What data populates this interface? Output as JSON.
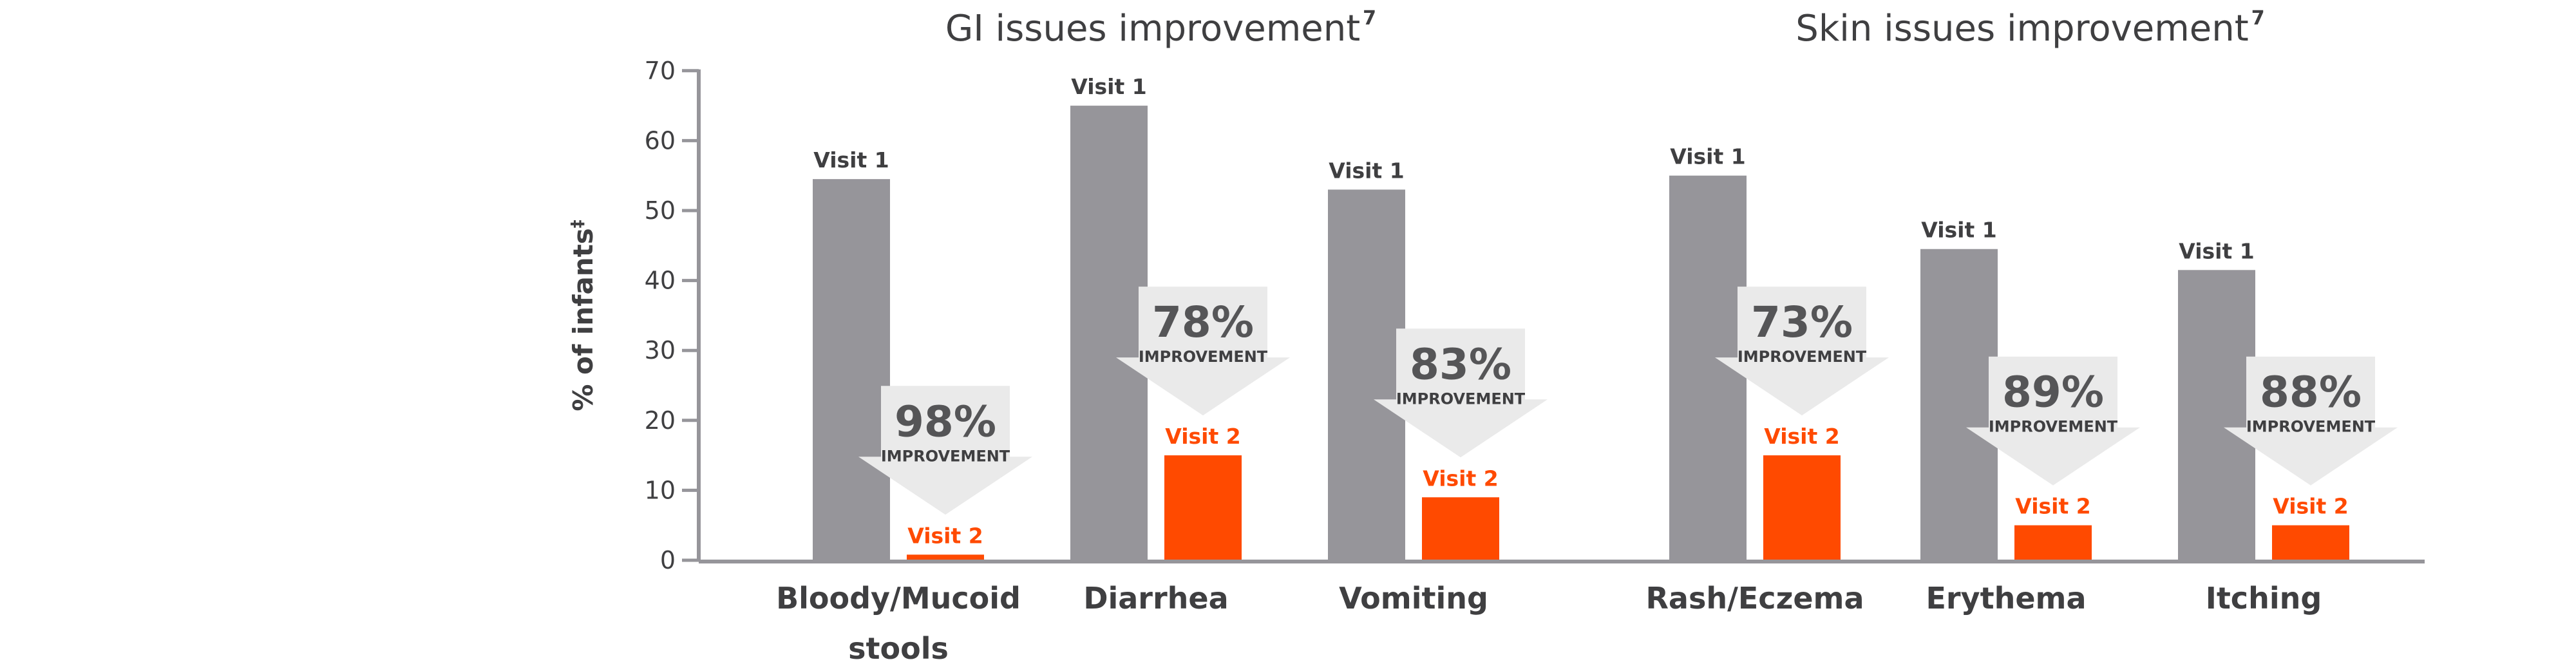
{
  "chart_data": {
    "type": "bar",
    "ylabel": "% of infants",
    "ylabel_superscript": "‡",
    "ylim": [
      0,
      70
    ],
    "yticks": [
      0,
      10,
      20,
      30,
      40,
      50,
      60,
      70
    ],
    "series_labels": {
      "visit1": "Visit 1",
      "visit2": "Visit 2"
    },
    "improvement_word": "IMPROVEMENT",
    "colors": {
      "visit1": "#96959a",
      "visit2": "#ff4a00",
      "arrow": "#eaeaea"
    },
    "groups": [
      {
        "title": "GI issues improvement",
        "superscript": "7",
        "categories": [
          {
            "label": [
              "Bloody/Mucoid",
              "stools"
            ],
            "visit1": 54.5,
            "visit2": 0.8,
            "improvement": "98%"
          },
          {
            "label": [
              "Diarrhea"
            ],
            "visit1": 65,
            "visit2": 15,
            "improvement": "78%"
          },
          {
            "label": [
              "Vomiting"
            ],
            "visit1": 53,
            "visit2": 9,
            "improvement": "83%"
          }
        ]
      },
      {
        "title": "Skin issues improvement",
        "superscript": "7",
        "categories": [
          {
            "label": [
              "Rash/Eczema"
            ],
            "visit1": 55,
            "visit2": 15,
            "improvement": "73%"
          },
          {
            "label": [
              "Erythema"
            ],
            "visit1": 44.5,
            "visit2": 5,
            "improvement": "89%"
          },
          {
            "label": [
              "Itching"
            ],
            "visit1": 41.5,
            "visit2": 5,
            "improvement": "88%"
          }
        ]
      }
    ]
  }
}
